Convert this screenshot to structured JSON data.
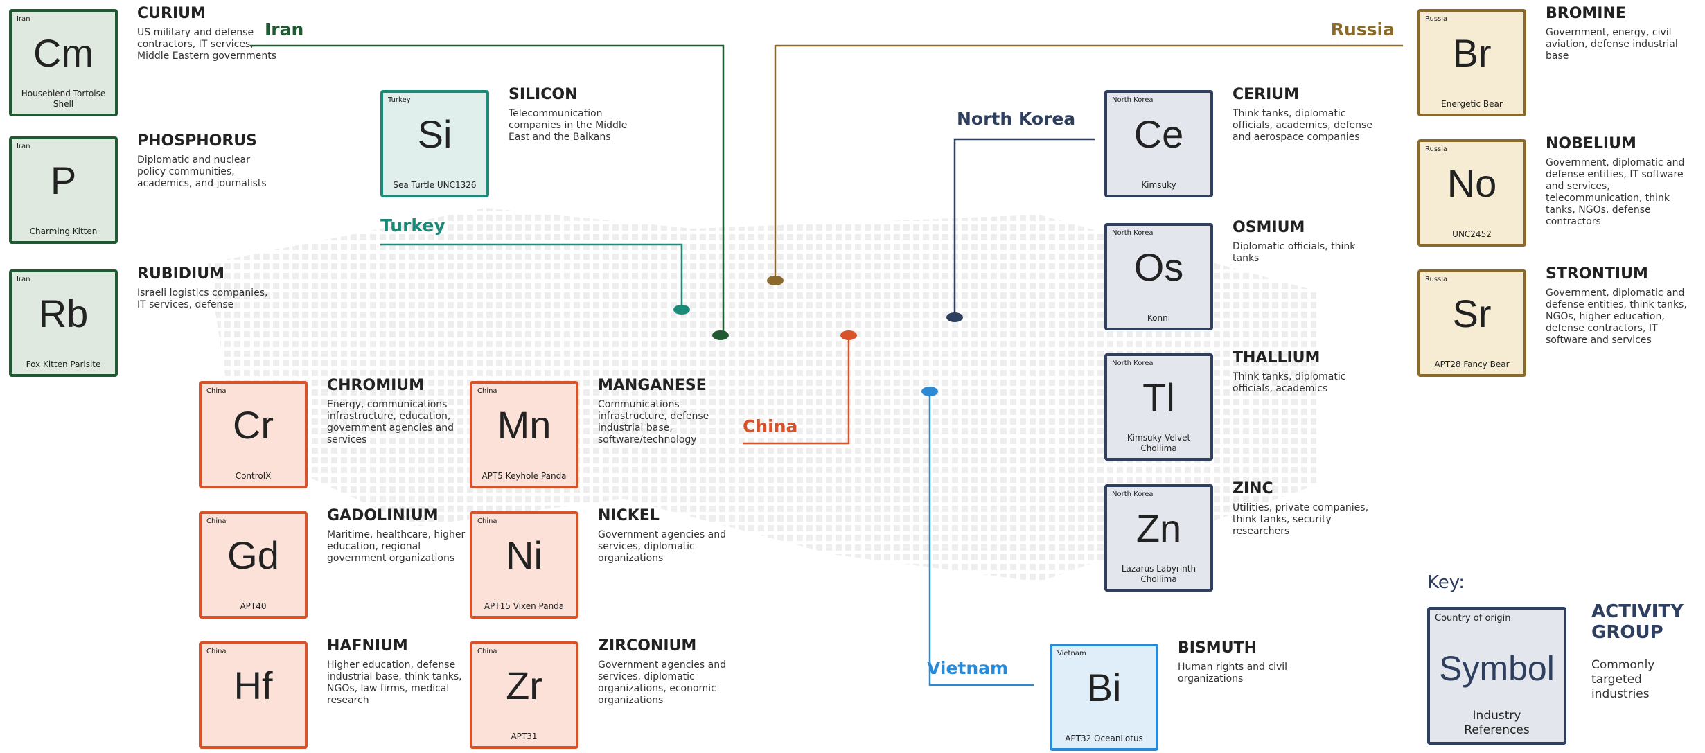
{
  "groups": [
    {
      "country": "Iran",
      "color": "#1f5a33",
      "fill": "#dfe9e0",
      "members": [
        {
          "symbol": "Cm",
          "name": "CURIUM",
          "refs": "Houseblend Tortoise Shell",
          "targets": "US military and defense contractors, IT services, Middle Eastern governments"
        },
        {
          "symbol": "P",
          "name": "PHOSPHORUS",
          "refs": "Charming Kitten",
          "targets": "Diplomatic and nuclear policy communities, academics, and journalists"
        },
        {
          "symbol": "Rb",
          "name": "RUBIDIUM",
          "refs": "Fox Kitten Parisite",
          "targets": "Israeli logistics companies, IT services, defense"
        }
      ]
    },
    {
      "country": "Turkey",
      "color": "#1b8a78",
      "fill": "#e0efec",
      "members": [
        {
          "symbol": "Si",
          "name": "SILICON",
          "refs": "Sea Turtle UNC1326",
          "targets": "Telecommunication companies in the Middle East and the Balkans"
        }
      ]
    },
    {
      "country": "Russia",
      "color": "#8a6a2a",
      "fill": "#f6ecd3",
      "members": [
        {
          "symbol": "Br",
          "name": "BROMINE",
          "refs": "Energetic Bear",
          "targets": "Government, energy, civil aviation, defense industrial base"
        },
        {
          "symbol": "No",
          "name": "NOBELIUM",
          "refs": "UNC2452",
          "targets": "Government, diplomatic and defense entities, IT software and services, telecommunication, think tanks, NGOs, defense contractors"
        },
        {
          "symbol": "Sr",
          "name": "STRONTIUM",
          "refs": "APT28 Fancy Bear",
          "targets": "Government, diplomatic and defense entities, think tanks, NGOs, higher education, defense contractors, IT software and services"
        }
      ]
    },
    {
      "country": "North Korea",
      "color": "#2e3f5f",
      "fill": "#e3e6ec",
      "members": [
        {
          "symbol": "Ce",
          "name": "CERIUM",
          "refs": "Kimsuky",
          "targets": "Think tanks, diplomatic officials, academics, defense and aerospace companies"
        },
        {
          "symbol": "Os",
          "name": "OSMIUM",
          "refs": "Konni",
          "targets": "Diplomatic officials, think tanks"
        },
        {
          "symbol": "Tl",
          "name": "THALLIUM",
          "refs": "Kimsuky Velvet Chollima",
          "targets": "Think tanks, diplomatic officials, academics"
        },
        {
          "symbol": "Zn",
          "name": "ZINC",
          "refs": "Lazarus Labyrinth Chollima",
          "targets": "Utilities, private companies, think tanks, security researchers"
        }
      ]
    },
    {
      "country": "China",
      "color": "#d9532a",
      "fill": "#fbe1d7",
      "members": [
        {
          "symbol": "Cr",
          "name": "CHROMIUM",
          "refs": "ControlX",
          "targets": "Energy, communications infrastructure, education, government agencies and services"
        },
        {
          "symbol": "Mn",
          "name": "MANGANESE",
          "refs": "APT5 Keyhole Panda",
          "targets": "Communications infrastructure, defense industrial base, software/technology"
        },
        {
          "symbol": "Gd",
          "name": "GADOLINIUM",
          "refs": "APT40",
          "targets": "Maritime, healthcare, higher education, regional government organizations"
        },
        {
          "symbol": "Ni",
          "name": "NICKEL",
          "refs": "APT15 Vixen Panda",
          "targets": "Government agencies and services, diplomatic organizations"
        },
        {
          "symbol": "Hf",
          "name": "HAFNIUM",
          "targets": "Higher education, defense industrial base, think tanks, NGOs, law firms, medical research"
        },
        {
          "symbol": "Zr",
          "name": "ZIRCONIUM",
          "refs": "APT31",
          "targets": "Government agencies and services, diplomatic organizations, economic organizations"
        }
      ]
    },
    {
      "country": "Vietnam",
      "color": "#2b8ad6",
      "fill": "#e0eefa",
      "members": [
        {
          "symbol": "Bi",
          "name": "BISMUTH",
          "refs": "APT32 OceanLotus",
          "targets": "Human rights and civil organizations"
        }
      ]
    }
  ],
  "key": {
    "title": "Key:",
    "country": "Country of origin",
    "symbol": "Symbol",
    "refs": "Industry References",
    "name": "ACTIVITY GROUP",
    "targets": "Commonly targeted industries"
  }
}
